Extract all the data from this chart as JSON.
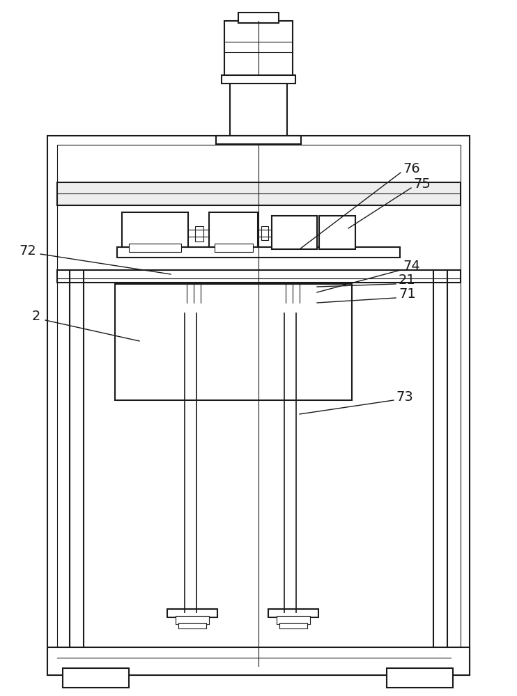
{
  "bg_color": "#ffffff",
  "lc": "#1a1a1a",
  "lw": 1.5,
  "tlw": 0.8,
  "mlw": 1.2
}
